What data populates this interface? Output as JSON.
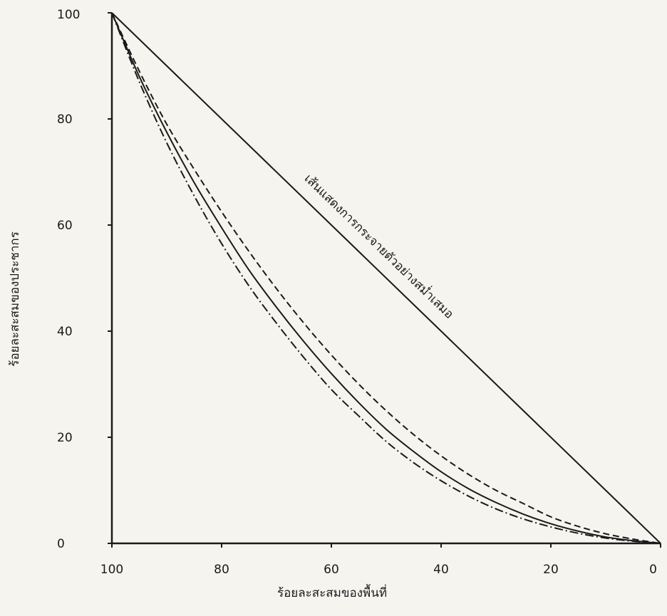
{
  "chart_data": {
    "type": "line",
    "xlabel": "ร้อยละสะสมของพื้นที่",
    "ylabel": "ร้อยละสะสมของประชากร",
    "x_reversed": true,
    "xlim": [
      100,
      0
    ],
    "ylim": [
      0,
      100
    ],
    "x_ticks": [
      "100",
      "80",
      "60",
      "40",
      "20",
      "0"
    ],
    "y_ticks": [
      "100",
      "80",
      "60",
      "40",
      "20",
      "0"
    ],
    "grid": false,
    "annotation": "เส้นแสดงการกระจายตัวอย่างสม่ำเสมอ",
    "series": [
      {
        "style": "solid",
        "color": "#1a1a1a",
        "x": [
          100,
          0
        ],
        "y": [
          100,
          0
        ]
      },
      {
        "style": "dashed",
        "color": "#1a1a1a",
        "x": [
          100,
          95,
          90,
          85,
          80,
          75,
          70,
          65,
          60,
          55,
          50,
          45,
          40,
          35,
          30,
          25,
          20,
          15,
          10,
          5,
          0
        ],
        "y": [
          100,
          89,
          79,
          70.5,
          62.5,
          55,
          48,
          41.5,
          35.5,
          30,
          25,
          20.5,
          16.5,
          13,
          10,
          7.5,
          5,
          3.2,
          1.8,
          0.8,
          0
        ]
      },
      {
        "style": "solid",
        "color": "#1a1a1a",
        "x": [
          100,
          95,
          90,
          85,
          80,
          75,
          70,
          65,
          60,
          55,
          50,
          45,
          40,
          35,
          30,
          25,
          20,
          15,
          10,
          5,
          0
        ],
        "y": [
          100,
          88,
          77.5,
          68,
          59.5,
          51.5,
          44.5,
          38,
          32,
          26.5,
          21.5,
          17.3,
          13.5,
          10.3,
          7.7,
          5.5,
          3.7,
          2.3,
          1.2,
          0.5,
          0
        ]
      },
      {
        "style": "dash-dot",
        "color": "#1a1a1a",
        "x": [
          100,
          95,
          90,
          85,
          80,
          75,
          70,
          65,
          60,
          55,
          50,
          45,
          40,
          35,
          30,
          25,
          20,
          15,
          10,
          5,
          0
        ],
        "y": [
          100,
          87,
          75.5,
          65.5,
          56.5,
          48.5,
          41.5,
          35,
          29,
          24,
          19.2,
          15.2,
          11.8,
          8.9,
          6.5,
          4.6,
          3.1,
          1.9,
          1,
          0.4,
          0
        ]
      }
    ]
  }
}
